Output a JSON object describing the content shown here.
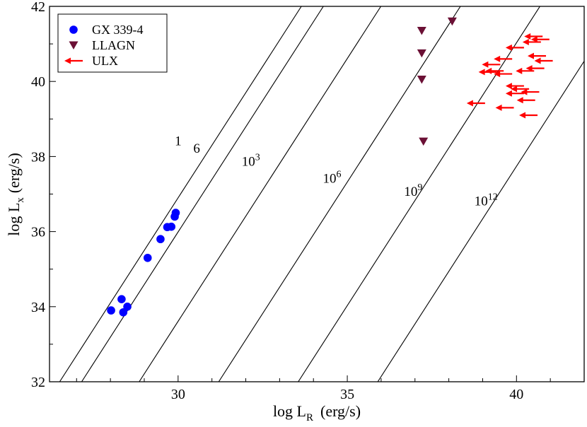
{
  "chart_data": {
    "type": "scatter",
    "xlabel": "log L",
    "xlabel_sub": "R",
    "xlabel_unit": "(erg/s)",
    "ylabel": "log L",
    "ylabel_sub": "x",
    "ylabel_unit": "(erg/s)",
    "xlim": [
      26.2,
      42.0
    ],
    "ylim": [
      32,
      42
    ],
    "x_ticks": [
      30,
      35,
      40
    ],
    "y_ticks": [
      32,
      34,
      36,
      38,
      40,
      42
    ],
    "colors": {
      "gx": "#0000ff",
      "llagn": "#6b1035",
      "ulx": "#ff0000",
      "axis": "#000000"
    },
    "legend": {
      "position": "top-left",
      "entries": [
        {
          "label": "GX 339-4",
          "marker": "circle",
          "series": "gx"
        },
        {
          "label": "LLAGN",
          "marker": "triangle-down",
          "series": "llagn"
        },
        {
          "label": "ULX",
          "marker": "left-arrow",
          "series": "ulx"
        }
      ]
    },
    "reference_lines": {
      "slope": 1.4,
      "lines": [
        {
          "label": "1",
          "base": "1",
          "exp": "",
          "x_at_ymin": 26.5,
          "label_at": [
            30.0,
            38.3
          ]
        },
        {
          "label": "6",
          "base": "6",
          "exp": "",
          "x_at_ymin": 27.15,
          "label_at": [
            30.55,
            38.1
          ]
        },
        {
          "label": "10^3",
          "base": "10",
          "exp": "3",
          "x_at_ymin": 28.85,
          "label_at": [
            32.15,
            37.75
          ]
        },
        {
          "label": "10^6",
          "base": "10",
          "exp": "6",
          "x_at_ymin": 31.2,
          "label_at": [
            34.55,
            37.3
          ]
        },
        {
          "label": "10^9",
          "base": "10",
          "exp": "9",
          "x_at_ymin": 33.55,
          "label_at": [
            36.95,
            36.95
          ]
        },
        {
          "label": "10^12",
          "base": "10",
          "exp": "12",
          "x_at_ymin": 35.9,
          "label_at": [
            39.1,
            36.7
          ]
        }
      ]
    },
    "series": [
      {
        "name": "GX 339-4",
        "key": "gx",
        "marker": "circle",
        "points": [
          [
            28.02,
            33.9
          ],
          [
            28.33,
            34.2
          ],
          [
            28.38,
            33.85
          ],
          [
            28.5,
            34.0
          ],
          [
            29.1,
            35.3
          ],
          [
            29.48,
            35.8
          ],
          [
            29.68,
            36.12
          ],
          [
            29.8,
            36.13
          ],
          [
            29.9,
            36.4
          ],
          [
            29.93,
            36.5
          ]
        ]
      },
      {
        "name": "LLAGN",
        "key": "llagn",
        "marker": "triangle-down",
        "points": [
          [
            37.2,
            41.35
          ],
          [
            38.1,
            41.6
          ],
          [
            37.2,
            40.75
          ],
          [
            37.2,
            40.05
          ],
          [
            37.25,
            38.4
          ]
        ]
      },
      {
        "name": "ULX",
        "key": "ulx",
        "marker": "left-arrow",
        "upper_limits": "x",
        "points": [
          [
            40.5,
            41.2
          ],
          [
            40.7,
            41.12
          ],
          [
            40.45,
            41.05
          ],
          [
            39.95,
            40.9
          ],
          [
            40.6,
            40.68
          ],
          [
            39.6,
            40.6
          ],
          [
            40.8,
            40.55
          ],
          [
            39.25,
            40.45
          ],
          [
            40.55,
            40.35
          ],
          [
            40.25,
            40.28
          ],
          [
            39.35,
            40.28
          ],
          [
            39.6,
            40.2
          ],
          [
            39.15,
            40.25
          ],
          [
            39.95,
            39.88
          ],
          [
            40.1,
            39.8
          ],
          [
            40.4,
            39.72
          ],
          [
            39.95,
            39.68
          ],
          [
            40.28,
            39.5
          ],
          [
            38.8,
            39.42
          ],
          [
            39.65,
            39.3
          ],
          [
            40.35,
            39.1
          ]
        ]
      }
    ]
  }
}
